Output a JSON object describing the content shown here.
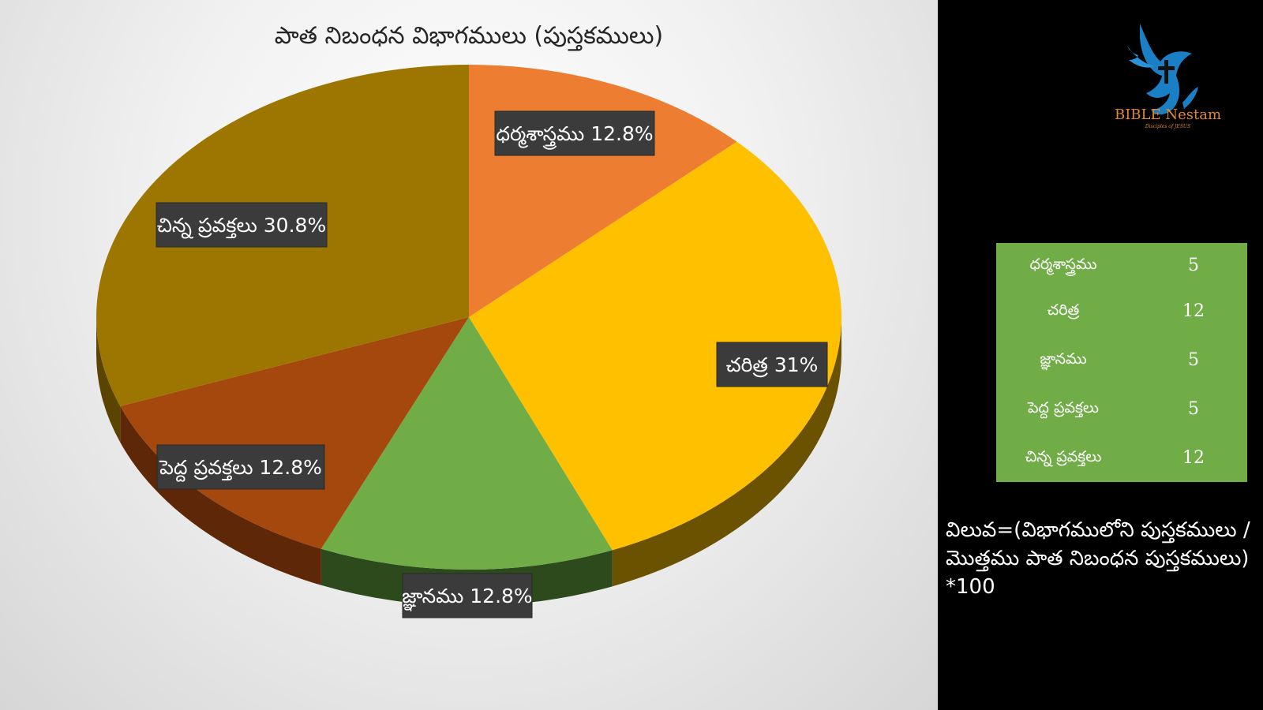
{
  "chart_data": {
    "type": "pie",
    "title": "పాత నిబంధన విభాగములు (పుస్తకములు)",
    "slices": [
      {
        "name": "ధర్మశాస్త్రము",
        "value": 12.8,
        "label": "ధర్మశాస్త్రము 12.8%",
        "color": "#ed7d31",
        "side": "#a8561f"
      },
      {
        "name": "చరిత్ర",
        "value": 31,
        "label": "చరిత్ర 31%",
        "color": "#ffc000",
        "side": "#6b5200"
      },
      {
        "name": "జ్ఞానము",
        "value": 12.8,
        "label": "జ్ఞానము 12.8%",
        "color": "#70ad47",
        "side": "#2d4a1c"
      },
      {
        "name": "పెద్ద ప్రవక్తలు",
        "value": 12.8,
        "label": "పెద్ద ప్రవక్తలు 12.8%",
        "color": "#a5480e",
        "side": "#5e2808"
      },
      {
        "name": "చిన్న ప్రవక్తలు",
        "value": 30.8,
        "label": "చిన్న ప్రవక్తలు 30.8%",
        "color": "#9c7600",
        "side": "#5a4400"
      }
    ]
  },
  "logo": {
    "text": "BIBLE Nestam",
    "subtitle": "Disciples of JESUS",
    "color": "#e0872b",
    "bird_color": "#1a7fc4"
  },
  "table": {
    "background": "#70ad47",
    "rows": [
      {
        "name": "ధర్మశాస్త్రము",
        "value": "5"
      },
      {
        "name": "చరిత్ర",
        "value": "12"
      },
      {
        "name": "జ్ఞానము",
        "value": "5"
      },
      {
        "name": "పెద్ద ప్రవక్తలు",
        "value": "5"
      },
      {
        "name": "చిన్న ప్రవక్తలు",
        "value": "12"
      }
    ]
  },
  "formula": {
    "line1": "విలువ=(విభాగములోని పుస్తకములు /",
    "line2": "మొత్తము పాత నిబంధన పుస్తకములు)",
    "line3": "*100"
  }
}
